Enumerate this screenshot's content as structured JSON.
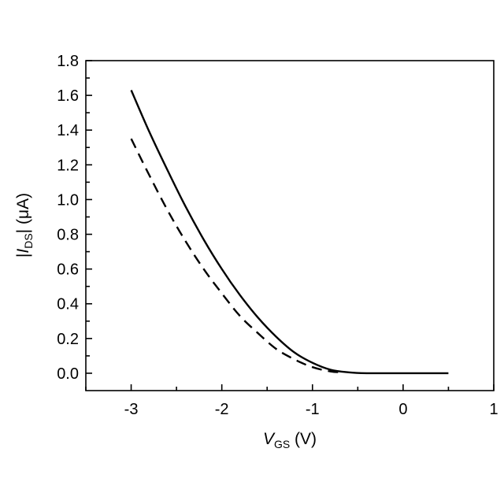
{
  "chart_data": {
    "type": "line",
    "xlabel": {
      "main": "V",
      "sub": "GS",
      "unit": " (V)"
    },
    "ylabel": {
      "pre": "|",
      "main": "I",
      "sub": "DS",
      "post": "| (μA)"
    },
    "xlim": [
      -3.5,
      1
    ],
    "ylim": [
      -0.1,
      1.8
    ],
    "xticks": [
      -3,
      -2,
      -1,
      0,
      1
    ],
    "xtick_labels": [
      "-3",
      "-2",
      "-1",
      "0",
      "1"
    ],
    "yticks": [
      0.0,
      0.2,
      0.4,
      0.6,
      0.8,
      1.0,
      1.2,
      1.4,
      1.6,
      1.8
    ],
    "ytick_labels": [
      "0.0",
      "0.2",
      "0.4",
      "0.6",
      "0.8",
      "1.0",
      "1.2",
      "1.4",
      "1.6",
      "1.8"
    ],
    "series": [
      {
        "style": "solid",
        "x": [
          -3.0,
          -2.8,
          -2.6,
          -2.4,
          -2.2,
          -2.0,
          -1.8,
          -1.6,
          -1.4,
          -1.2,
          -1.0,
          -0.8,
          -0.6,
          -0.4,
          -0.2,
          0.0,
          0.2,
          0.5
        ],
        "y": [
          1.63,
          1.39,
          1.17,
          0.96,
          0.77,
          0.6,
          0.45,
          0.32,
          0.21,
          0.12,
          0.06,
          0.02,
          0.005,
          0.0,
          0.0,
          0.0,
          0.0,
          0.0
        ]
      },
      {
        "style": "dashed",
        "x": [
          -3.0,
          -2.8,
          -2.6,
          -2.4,
          -2.2,
          -2.0,
          -1.8,
          -1.6,
          -1.4,
          -1.2,
          -1.0,
          -0.8,
          -0.65
        ],
        "y": [
          1.35,
          1.14,
          0.94,
          0.76,
          0.6,
          0.46,
          0.33,
          0.23,
          0.14,
          0.08,
          0.035,
          0.01,
          0.005
        ]
      }
    ]
  }
}
